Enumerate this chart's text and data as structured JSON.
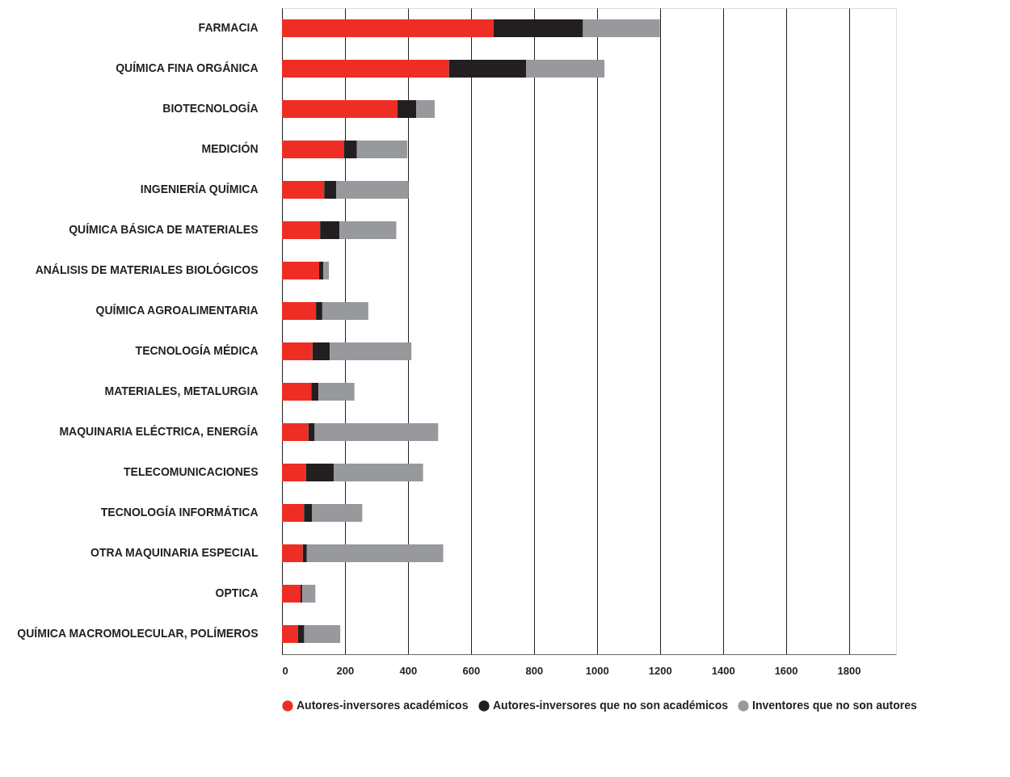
{
  "chart_data": {
    "type": "bar",
    "orientation": "horizontal",
    "stacked": true,
    "categories": [
      "FARMACIA",
      "QUÍMICA FINA ORGÁNICA",
      "BIOTECNOLOGÍA",
      "MEDICIÓN",
      "INGENIERÍA QUÍMICA",
      "QUÍMICA BÁSICA DE MATERIALES",
      "ANÁLISIS DE MATERIALES BIOLÓGICOS",
      "QUÍMICA AGROALIMENTARIA",
      "TECNOLOGÍA MÉDICA",
      "MATERIALES, METALURGIA",
      "MAQUINARIA ELÉCTRICA, ENERGÍA",
      "TELECOMUNICACIONES",
      "TECNOLOGÍA INFORMÁTICA",
      "OTRA MAQUINARIA ESPECIAL",
      "OPTICA",
      "QUÍMICA MACROMOLECULAR, POLÍMEROS"
    ],
    "series": [
      {
        "name": "Autores-inversores académicos",
        "color": "#ee2e24",
        "values": [
          671,
          530,
          367,
          196,
          134,
          121,
          118,
          108,
          97,
          93,
          84,
          76,
          70,
          66,
          59,
          50
        ]
      },
      {
        "name": "Autores-inversores que no son académicos",
        "color": "#231f20",
        "values": [
          285,
          246,
          60,
          42,
          39,
          62,
          13,
          20,
          55,
          23,
          20,
          89,
          25,
          13,
          5,
          21
        ]
      },
      {
        "name": "Inventores que no son autores",
        "color": "#98999c",
        "values": [
          244,
          248,
          58,
          160,
          229,
          180,
          18,
          146,
          259,
          114,
          392,
          283,
          160,
          433,
          42,
          114
        ]
      }
    ],
    "xlim": [
      0,
      1950
    ],
    "xticks": [
      0,
      200,
      400,
      600,
      800,
      1000,
      1200,
      1400,
      1600,
      1800
    ],
    "grid": "x",
    "legend": "bottom"
  }
}
